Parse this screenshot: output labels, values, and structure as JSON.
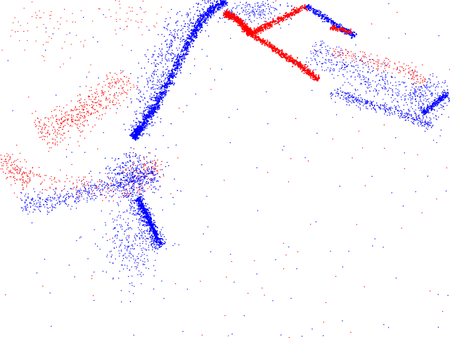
{
  "image": {
    "kind": "event-camera-polarity-visualization",
    "background_color": "#ffffff",
    "colors": {
      "positive_polarity": "#ff0000",
      "negative_polarity": "#0000ff"
    }
  }
}
